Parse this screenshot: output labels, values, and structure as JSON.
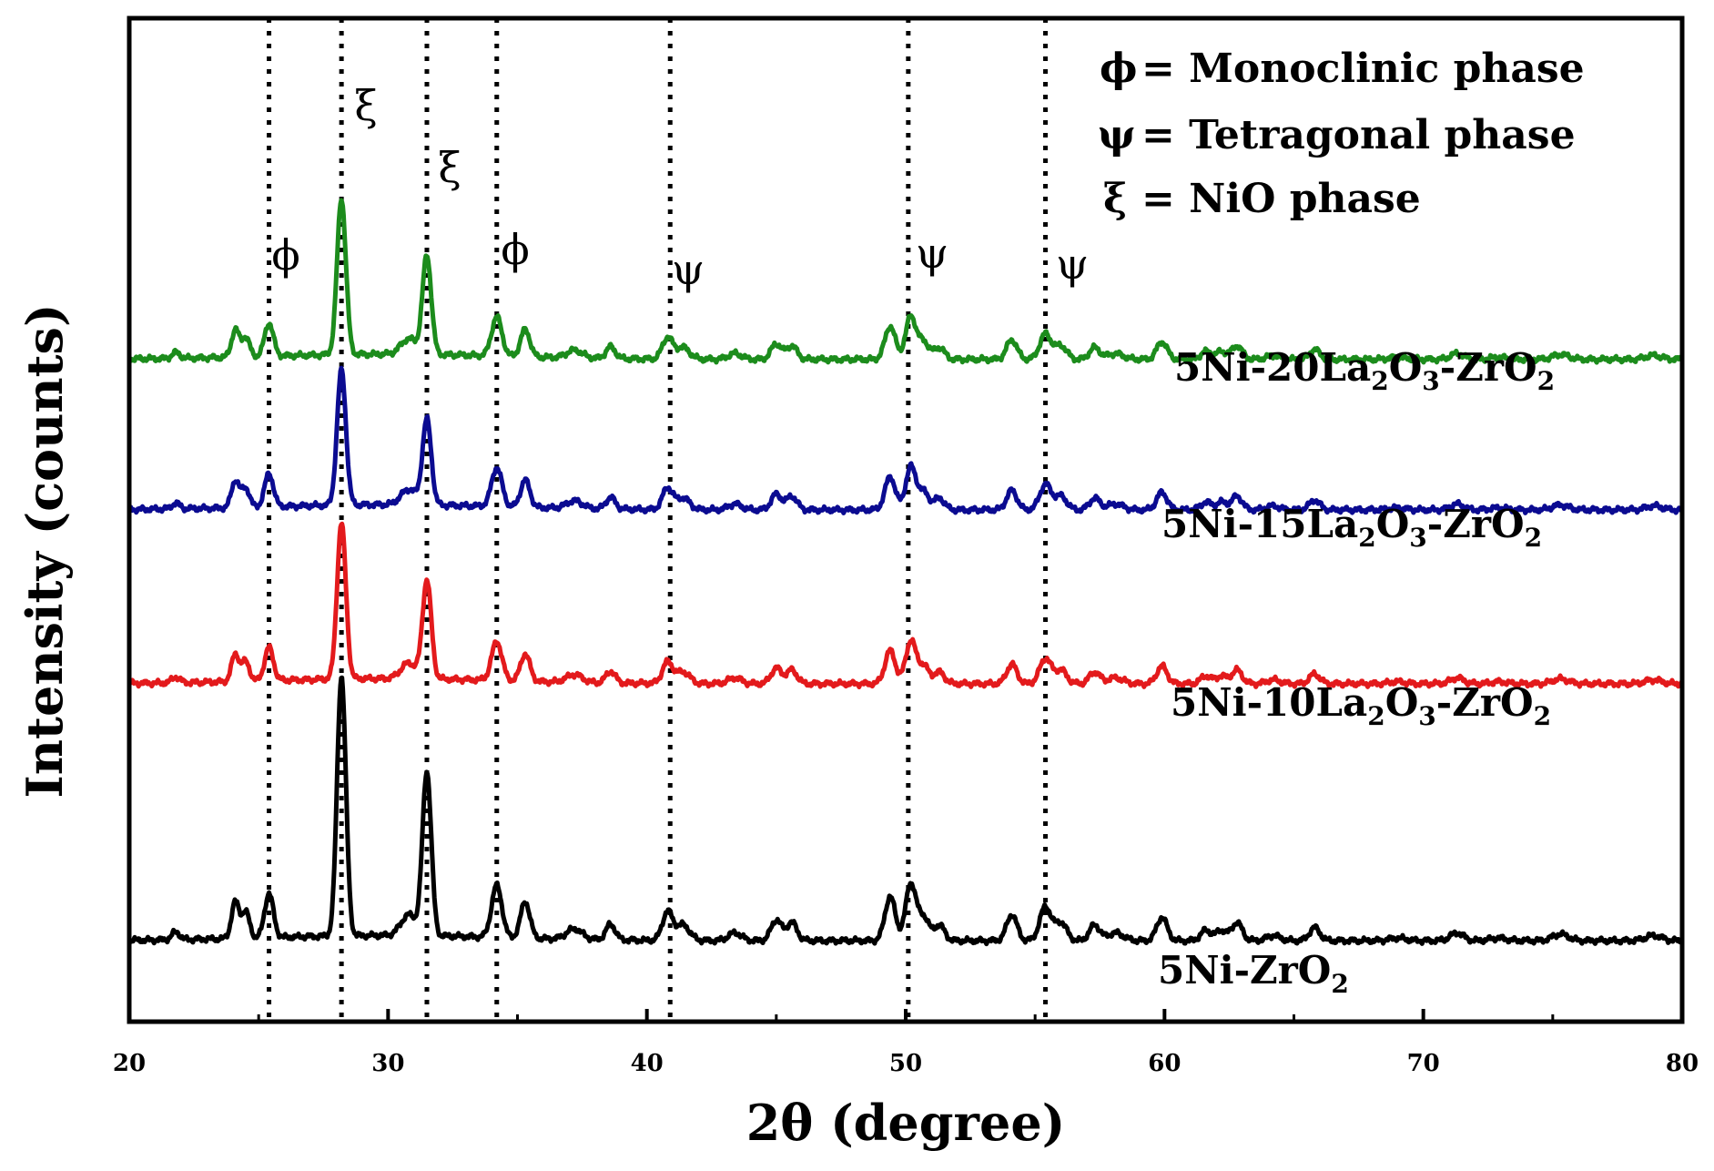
{
  "chart_data": {
    "type": "line",
    "title": "",
    "xlabel": "2θ (degree)",
    "ylabel": "Intensity (counts)",
    "xlim": [
      20,
      80
    ],
    "xticks": [
      20,
      30,
      40,
      50,
      60,
      70,
      80
    ],
    "y_ticks_shown": false,
    "legend": [
      {
        "symbol": "ϕ",
        "text": "= Monoclinic phase"
      },
      {
        "symbol": "ψ",
        "text": "= Tetragonal phase"
      },
      {
        "symbol": "ξ",
        "text": "= NiO phase"
      }
    ],
    "reference_lines_x": [
      25.4,
      28.2,
      31.5,
      34.2,
      40.9,
      50.1,
      55.4
    ],
    "peak_markers": [
      {
        "symbol": "ϕ",
        "x": 26.2
      },
      {
        "symbol": "ξ",
        "x": 29.0
      },
      {
        "symbol": "ξ",
        "x": 32.4
      },
      {
        "symbol": "ϕ",
        "x": 35.0
      },
      {
        "symbol": "ψ",
        "x": 41.9
      },
      {
        "symbol": "ψ",
        "x": 51.0
      },
      {
        "symbol": "ψ",
        "x": 56.0
      }
    ],
    "peaks": [
      {
        "x": 21.8,
        "w": 0.15,
        "h": 0.03
      },
      {
        "x": 24.1,
        "w": 0.15,
        "h": 0.14
      },
      {
        "x": 24.5,
        "w": 0.15,
        "h": 0.1
      },
      {
        "x": 25.4,
        "w": 0.17,
        "h": 0.17
      },
      {
        "x": 28.2,
        "w": 0.17,
        "h": 1.0
      },
      {
        "x": 30.8,
        "w": 0.3,
        "h": 0.08
      },
      {
        "x": 31.5,
        "w": 0.17,
        "h": 0.63
      },
      {
        "x": 34.2,
        "w": 0.2,
        "h": 0.2
      },
      {
        "x": 35.3,
        "w": 0.18,
        "h": 0.14
      },
      {
        "x": 37.2,
        "w": 0.3,
        "h": 0.04
      },
      {
        "x": 38.6,
        "w": 0.18,
        "h": 0.06
      },
      {
        "x": 40.8,
        "w": 0.2,
        "h": 0.11
      },
      {
        "x": 41.4,
        "w": 0.25,
        "h": 0.06
      },
      {
        "x": 43.4,
        "w": 0.25,
        "h": 0.03
      },
      {
        "x": 45.0,
        "w": 0.2,
        "h": 0.08
      },
      {
        "x": 45.6,
        "w": 0.2,
        "h": 0.07
      },
      {
        "x": 49.4,
        "w": 0.2,
        "h": 0.17
      },
      {
        "x": 50.2,
        "w": 0.2,
        "h": 0.22
      },
      {
        "x": 50.7,
        "w": 0.2,
        "h": 0.09
      },
      {
        "x": 51.3,
        "w": 0.2,
        "h": 0.06
      },
      {
        "x": 54.1,
        "w": 0.2,
        "h": 0.1
      },
      {
        "x": 55.4,
        "w": 0.22,
        "h": 0.13
      },
      {
        "x": 56.0,
        "w": 0.22,
        "h": 0.07
      },
      {
        "x": 57.3,
        "w": 0.2,
        "h": 0.06
      },
      {
        "x": 58.1,
        "w": 0.3,
        "h": 0.03
      },
      {
        "x": 59.9,
        "w": 0.2,
        "h": 0.09
      },
      {
        "x": 61.6,
        "w": 0.2,
        "h": 0.04
      },
      {
        "x": 62.2,
        "w": 0.2,
        "h": 0.04
      },
      {
        "x": 62.8,
        "w": 0.2,
        "h": 0.07
      },
      {
        "x": 64.2,
        "w": 0.25,
        "h": 0.02
      },
      {
        "x": 65.8,
        "w": 0.2,
        "h": 0.05
      },
      {
        "x": 69.0,
        "w": 0.3,
        "h": 0.01
      },
      {
        "x": 71.3,
        "w": 0.25,
        "h": 0.03
      },
      {
        "x": 72.9,
        "w": 0.3,
        "h": 0.01
      },
      {
        "x": 75.3,
        "w": 0.3,
        "h": 0.025
      },
      {
        "x": 78.9,
        "w": 0.3,
        "h": 0.02
      }
    ],
    "series": [
      {
        "name": "5Ni-ZrO2",
        "label_main": "5Ni-ZrO",
        "label_sub": "2",
        "color": "#000000",
        "baseline": 0.0,
        "scale": 1.0
      },
      {
        "name": "5Ni-10La2O3-ZrO2",
        "label_main": "5Ni-10La",
        "label_sub": "2",
        "label_mid": "O",
        "label_sub2": "3",
        "label_tail": "-ZrO",
        "label_sub3": "2",
        "color": "#e31a1c",
        "baseline": 0.99,
        "scale": 0.6
      },
      {
        "name": "5Ni-15La2O3-ZrO2",
        "label_main": "5Ni-15La",
        "label_sub": "2",
        "label_mid": "O",
        "label_sub2": "3",
        "label_tail": "-ZrO",
        "label_sub3": "2",
        "color": "#0b0b91",
        "baseline": 1.66,
        "scale": 0.52
      },
      {
        "name": "5Ni-20La2O3-ZrO2",
        "label_main": "5Ni-20La",
        "label_sub": "2",
        "label_mid": "O",
        "label_sub2": "3",
        "label_tail": "-ZrO",
        "label_sub3": "2",
        "color": "#1c8c1c",
        "baseline": 2.24,
        "scale": 0.6
      }
    ]
  }
}
